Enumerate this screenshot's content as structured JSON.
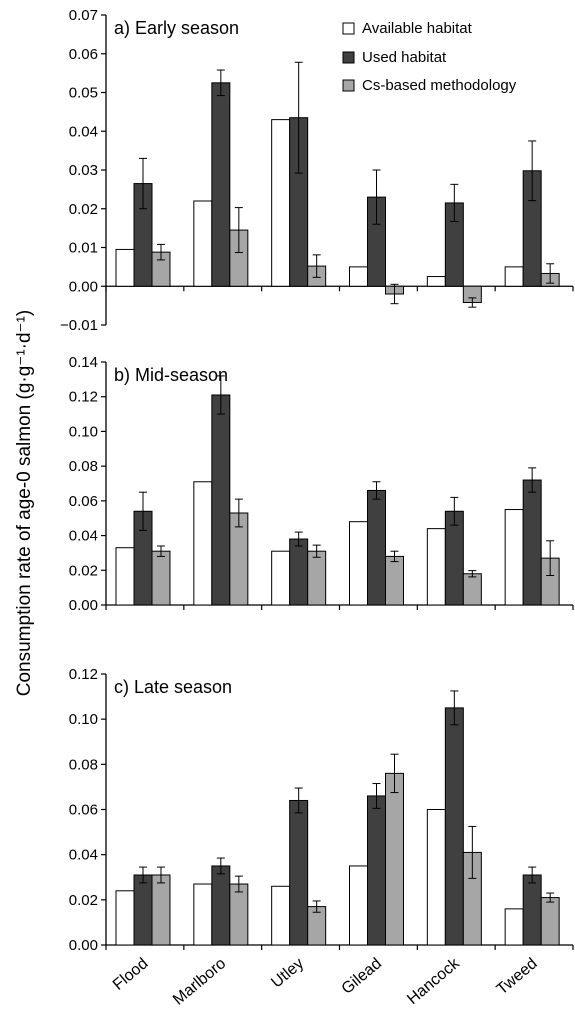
{
  "ylabel": "Consumption rate of age-0 salmon (g·g⁻¹·d⁻¹)",
  "legend": [
    {
      "label": "Available habitat",
      "color": "#ffffff"
    },
    {
      "label": "Used habitat",
      "color": "#404040"
    },
    {
      "label": "Cs-based methodology",
      "color": "#a6a6a6"
    }
  ],
  "chart_data": [
    {
      "type": "bar",
      "title": "a) Early season",
      "categories": [
        "Flood",
        "Marlboro",
        "Utley",
        "Gilead",
        "Hancock",
        "Tweed"
      ],
      "ylim": [
        -0.01,
        0.07
      ],
      "yticks": [
        "−0.01",
        "0.00",
        "0.01",
        "0.02",
        "0.03",
        "0.04",
        "0.05",
        "0.06",
        "0.07"
      ],
      "series": [
        {
          "name": "Available habitat",
          "values": [
            0.0095,
            0.022,
            0.043,
            0.005,
            0.0025,
            0.005
          ],
          "errors": [
            null,
            null,
            null,
            null,
            null,
            null
          ]
        },
        {
          "name": "Used habitat",
          "values": [
            0.0265,
            0.0525,
            0.0435,
            0.023,
            0.0215,
            0.0298
          ],
          "errors": [
            0.0065,
            0.0033,
            0.0143,
            0.007,
            0.0048,
            0.0077
          ]
        },
        {
          "name": "Cs-based methodology",
          "values": [
            0.0088,
            0.0145,
            0.0052,
            -0.002,
            -0.0042,
            0.0033
          ],
          "errors": [
            0.002,
            0.0058,
            0.0029,
            0.0025,
            0.0012,
            0.0025
          ]
        }
      ]
    },
    {
      "type": "bar",
      "title": "b) Mid-season",
      "categories": [
        "Flood",
        "Marlboro",
        "Utley",
        "Gilead",
        "Hancock",
        "Tweed"
      ],
      "ylim": [
        0,
        0.14
      ],
      "yticks": [
        "0.00",
        "0.02",
        "0.04",
        "0.06",
        "0.08",
        "0.10",
        "0.12",
        "0.14"
      ],
      "series": [
        {
          "name": "Available habitat",
          "values": [
            0.033,
            0.071,
            0.031,
            0.048,
            0.044,
            0.055
          ],
          "errors": [
            null,
            null,
            null,
            null,
            null,
            null
          ]
        },
        {
          "name": "Used habitat",
          "values": [
            0.054,
            0.121,
            0.038,
            0.066,
            0.054,
            0.072
          ],
          "errors": [
            0.011,
            0.011,
            0.004,
            0.005,
            0.008,
            0.007
          ]
        },
        {
          "name": "Cs-based methodology",
          "values": [
            0.031,
            0.053,
            0.031,
            0.028,
            0.018,
            0.027
          ],
          "errors": [
            0.003,
            0.008,
            0.0035,
            0.003,
            0.0018,
            0.01
          ]
        }
      ]
    },
    {
      "type": "bar",
      "title": "c) Late season",
      "categories": [
        "Flood",
        "Marlboro",
        "Utley",
        "Gilead",
        "Hancock",
        "Tweed"
      ],
      "ylim": [
        0,
        0.12
      ],
      "yticks": [
        "0.00",
        "0.02",
        "0.04",
        "0.06",
        "0.08",
        "0.10",
        "0.12"
      ],
      "series": [
        {
          "name": "Available habitat",
          "values": [
            0.024,
            0.027,
            0.026,
            0.035,
            0.06,
            0.016
          ],
          "errors": [
            null,
            null,
            null,
            null,
            null,
            null
          ]
        },
        {
          "name": "Used habitat",
          "values": [
            0.031,
            0.035,
            0.064,
            0.066,
            0.105,
            0.031
          ],
          "errors": [
            0.0035,
            0.0035,
            0.0055,
            0.0055,
            0.0075,
            0.0035
          ]
        },
        {
          "name": "Cs-based methodology",
          "values": [
            0.031,
            0.027,
            0.017,
            0.076,
            0.041,
            0.021
          ],
          "errors": [
            0.0035,
            0.0035,
            0.0025,
            0.0085,
            0.0115,
            0.002
          ]
        }
      ]
    }
  ]
}
